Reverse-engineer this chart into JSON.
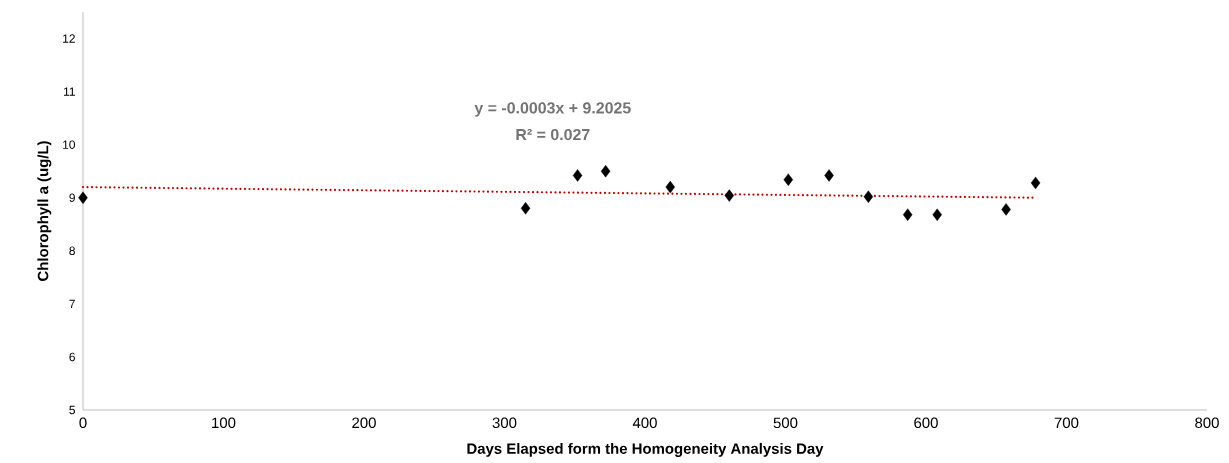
{
  "chart_data": {
    "type": "scatter",
    "xlabel": "Days Elapsed form the Homogeneity Analysis Day",
    "ylabel": "Chlorophyll a (ug/L)",
    "annotations": [
      "y = -0.0003x + 9.2025",
      "R² = 0.027"
    ],
    "xlim": [
      0,
      800
    ],
    "xticks": [
      0,
      100,
      200,
      300,
      400,
      500,
      600,
      700,
      800
    ],
    "ylim": [
      5,
      12.5
    ],
    "yticks": [
      5,
      6,
      7,
      8,
      9,
      10,
      11,
      12
    ],
    "grid": false,
    "series": [
      {
        "color": "#000000",
        "marker": "diamond",
        "x": [
          0,
          315,
          352,
          372,
          418,
          460,
          502,
          531,
          559,
          587,
          608,
          657,
          678
        ],
        "values": [
          9.0,
          8.8,
          9.42,
          9.5,
          9.2,
          9.04,
          9.34,
          9.42,
          9.02,
          8.68,
          8.68,
          8.78,
          9.28
        ]
      },
      {
        "type": "line",
        "color": "#c00000",
        "marker": "none",
        "line_style": "dotted",
        "x": [
          0,
          678
        ],
        "values": [
          9.2,
          9.0
        ]
      }
    ]
  }
}
